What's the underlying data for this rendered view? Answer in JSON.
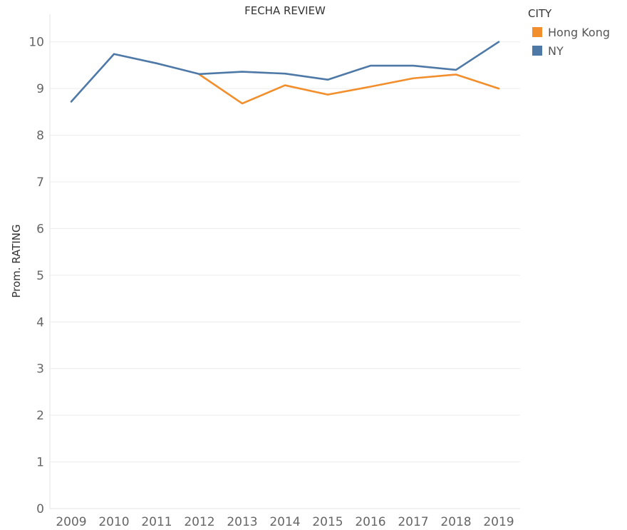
{
  "chart_data": {
    "type": "line",
    "title": "FECHA REVIEW",
    "xlabel": "",
    "ylabel": "Prom. RATING",
    "categories": [
      "2009",
      "2010",
      "2011",
      "2012",
      "2013",
      "2014",
      "2015",
      "2016",
      "2017",
      "2018",
      "2019"
    ],
    "ylim": [
      0,
      10.5
    ],
    "yticks": [
      0,
      1,
      2,
      3,
      4,
      5,
      6,
      7,
      8,
      9,
      10
    ],
    "grid": true,
    "legend": {
      "title": "CITY",
      "position": "top-right"
    },
    "series": [
      {
        "name": "Hong Kong",
        "color": "#F28E2B",
        "values": [
          null,
          null,
          null,
          9.3,
          8.68,
          9.07,
          8.87,
          9.04,
          9.22,
          9.3,
          9.0
        ]
      },
      {
        "name": "NY",
        "color": "#4E79A7",
        "values": [
          8.72,
          9.74,
          9.54,
          9.31,
          9.36,
          9.32,
          9.19,
          9.49,
          9.49,
          9.4,
          10.0
        ]
      }
    ]
  }
}
